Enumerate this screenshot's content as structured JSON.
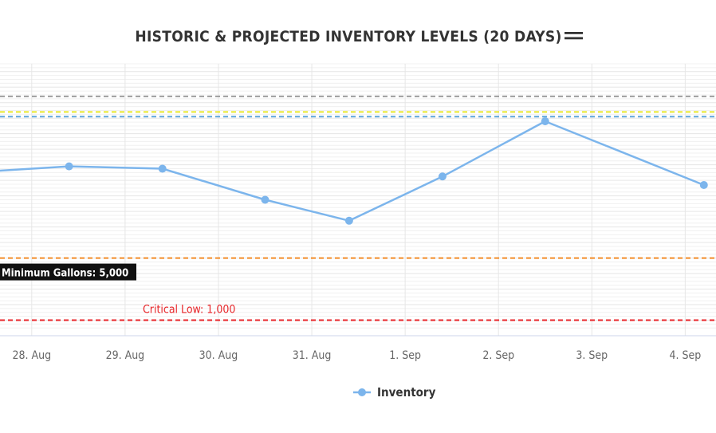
{
  "title": "HISTORIC & PROJECTED INVENTORY LEVELS (20 DAYS)",
  "menu_icon": "hamburger-menu-icon",
  "chart_data": {
    "type": "line",
    "categories": [
      "28. Aug",
      "29. Aug",
      "30. Aug",
      "31. Aug",
      "1. Sep",
      "2. Sep",
      "3. Sep",
      "4. Sep"
    ],
    "series": [
      {
        "name": "Inventory",
        "color": "#7cb5ec",
        "points": [
          {
            "x": 27.6,
            "y": 10600
          },
          {
            "x": 28.4,
            "y": 10900
          },
          {
            "x": 29.4,
            "y": 10750
          },
          {
            "x": 30.5,
            "y": 8750
          },
          {
            "x": 31.4,
            "y": 7400
          },
          {
            "x": 32.4,
            "y": 10250
          },
          {
            "x": 33.5,
            "y": 13800
          },
          {
            "x": 35.2,
            "y": 9700
          }
        ]
      }
    ],
    "plot_lines": [
      {
        "value": 15400,
        "color": "#9e9e9e",
        "label": ""
      },
      {
        "value": 14400,
        "color": "#e8e82a",
        "label": ""
      },
      {
        "value": 14100,
        "color": "#5fa6dc",
        "label": ""
      },
      {
        "value": 5000,
        "color": "#f28c28",
        "label": "Minimum Gallons: 5,000"
      },
      {
        "value": 1000,
        "color": "#e8262a",
        "label": "Critical Low: 1,000"
      }
    ],
    "y_range": [
      0,
      17500
    ],
    "x_range": [
      27.66,
      35.33
    ],
    "grid": true,
    "legend": "bottom-center"
  }
}
